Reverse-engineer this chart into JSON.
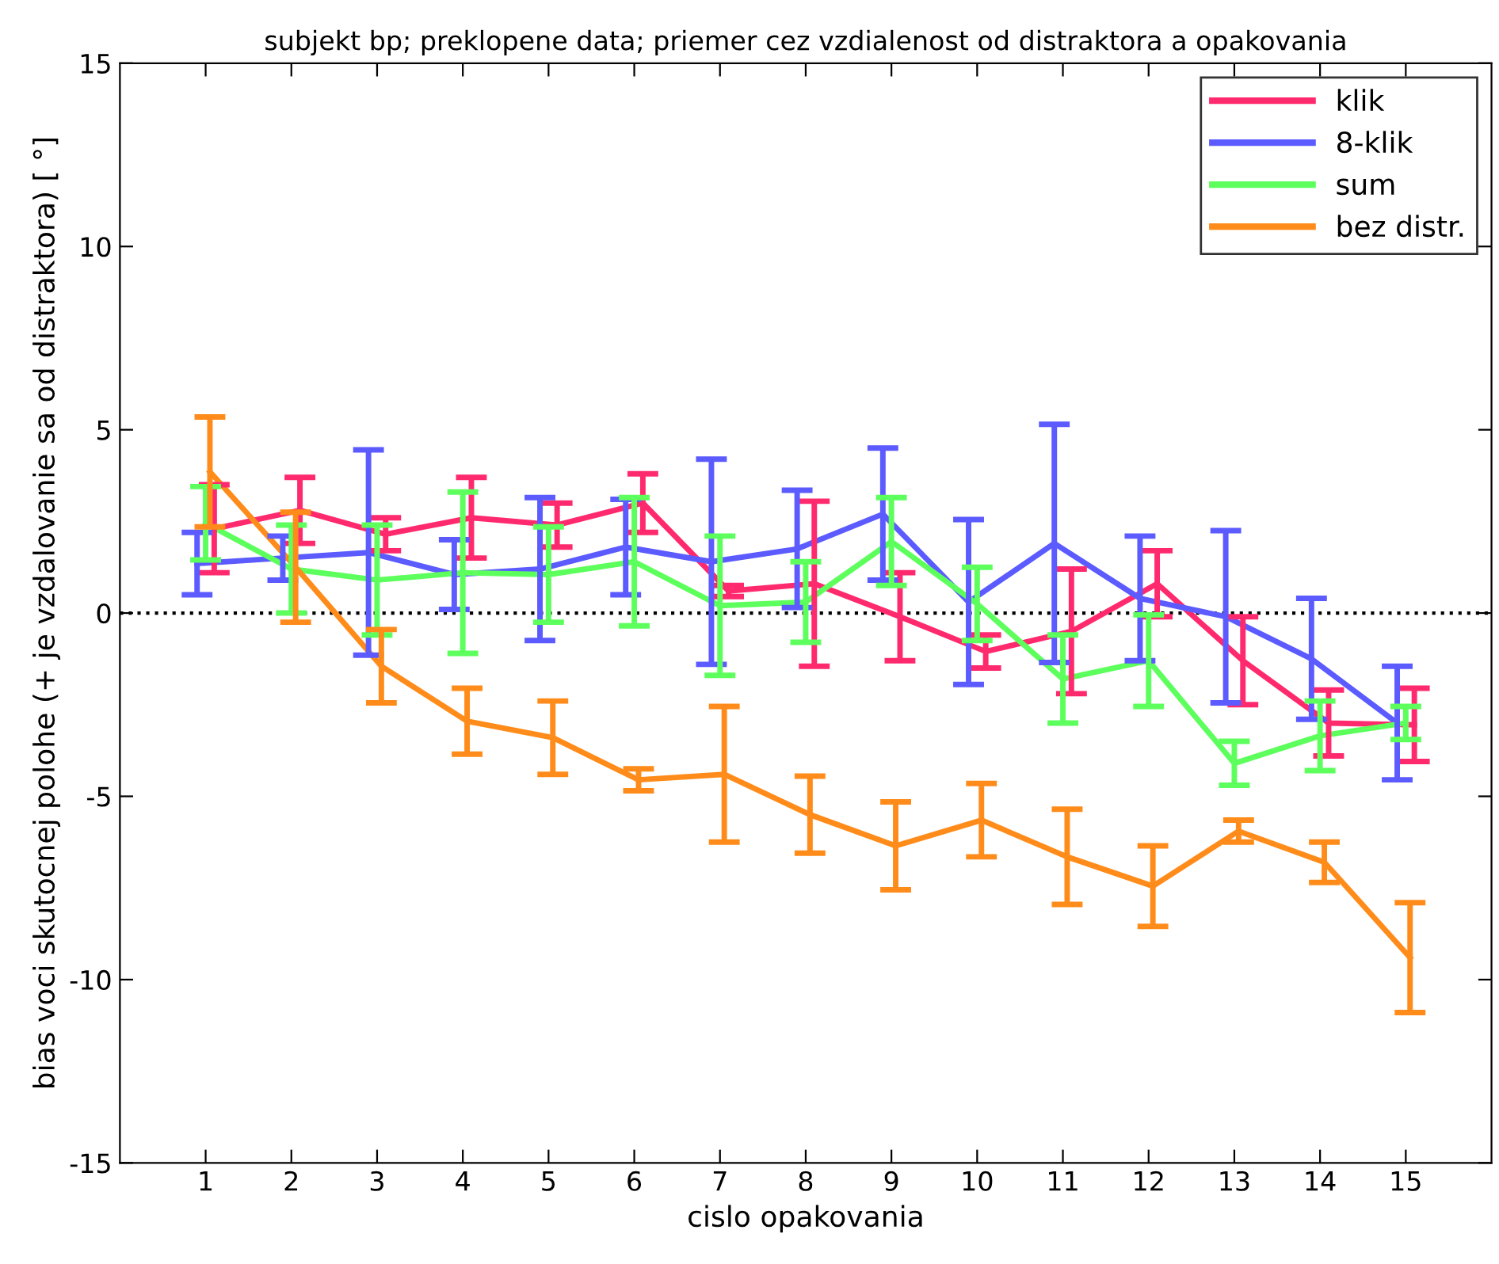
{
  "chart_data": {
    "type": "line",
    "title": "subjekt bp; preklopene data; priemer cez vzdialenost od distraktora a opakovania",
    "xlabel": "cislo opakovania",
    "ylabel": "bias voci skutocnej polohe (+ je vzdalovanie sa od distraktora) [ °]",
    "x": [
      1,
      2,
      3,
      4,
      5,
      6,
      7,
      8,
      9,
      10,
      11,
      12,
      13,
      14,
      15
    ],
    "xlim": [
      0,
      16
    ],
    "xticks": [
      1,
      2,
      3,
      4,
      5,
      6,
      7,
      8,
      9,
      10,
      11,
      12,
      13,
      14,
      15
    ],
    "ylim": [
      -15,
      15
    ],
    "yticks": [
      -15,
      -10,
      -5,
      0,
      5,
      10,
      15
    ],
    "grid": false,
    "legend": "top right",
    "marker": "none",
    "line_style": "solid",
    "ref_lines": [
      {
        "axis": "y",
        "value": 0,
        "color": "#000000",
        "line_style": "dotted"
      }
    ],
    "series": [
      {
        "name": "klik",
        "color": "#ff2a6e",
        "x": [
          1.1,
          2.1,
          3.1,
          4.1,
          5.1,
          6.1,
          7.1,
          8.1,
          9.1,
          10.1,
          11.1,
          12.1,
          13.1,
          14.1,
          15.1
        ],
        "values": [
          2.3,
          2.8,
          2.15,
          2.6,
          2.4,
          3.0,
          0.6,
          0.8,
          -0.1,
          -1.05,
          -0.5,
          0.8,
          -1.3,
          -3.0,
          -3.05
        ],
        "errors": [
          1.2,
          0.9,
          0.45,
          1.1,
          0.6,
          0.8,
          0.15,
          2.25,
          1.2,
          0.45,
          1.7,
          0.9,
          1.2,
          0.9,
          1.0
        ]
      },
      {
        "name": "8-klik",
        "color": "#5b5bff",
        "x": [
          0.9,
          1.9,
          2.9,
          3.9,
          4.9,
          5.9,
          6.9,
          7.9,
          8.9,
          9.9,
          10.9,
          11.9,
          12.9,
          13.9,
          14.9
        ],
        "values": [
          1.35,
          1.5,
          1.65,
          1.05,
          1.2,
          1.8,
          1.4,
          1.75,
          2.7,
          0.3,
          1.9,
          0.4,
          -0.1,
          -1.25,
          -3.0
        ],
        "errors": [
          0.85,
          0.6,
          2.8,
          0.95,
          1.95,
          1.3,
          2.8,
          1.6,
          1.8,
          2.25,
          3.25,
          1.7,
          2.35,
          1.65,
          1.55
        ]
      },
      {
        "name": "sum",
        "color": "#5cff5c",
        "values": [
          2.45,
          1.2,
          0.9,
          1.1,
          1.05,
          1.4,
          0.2,
          0.3,
          1.95,
          0.25,
          -1.8,
          -1.3,
          -4.1,
          -3.35,
          -3.0
        ],
        "errors": [
          1.0,
          1.2,
          1.5,
          2.2,
          1.3,
          1.75,
          1.9,
          1.1,
          1.2,
          1.0,
          1.2,
          1.25,
          0.6,
          0.95,
          0.45
        ]
      },
      {
        "name": "bez distr.",
        "color": "#ff8c1a",
        "x": [
          1.05,
          2.05,
          3.05,
          4.05,
          5.05,
          6.05,
          7.05,
          8.05,
          9.05,
          10.05,
          11.05,
          12.05,
          13.05,
          14.05,
          15.05
        ],
        "values": [
          3.85,
          1.25,
          -1.45,
          -2.95,
          -3.4,
          -4.55,
          -4.4,
          -5.5,
          -6.35,
          -5.65,
          -6.65,
          -7.45,
          -5.95,
          -6.8,
          -9.4
        ],
        "errors": [
          1.5,
          1.5,
          1.0,
          0.9,
          1.0,
          0.3,
          1.85,
          1.05,
          1.2,
          1.0,
          1.3,
          1.1,
          0.3,
          0.55,
          1.5
        ]
      }
    ]
  }
}
